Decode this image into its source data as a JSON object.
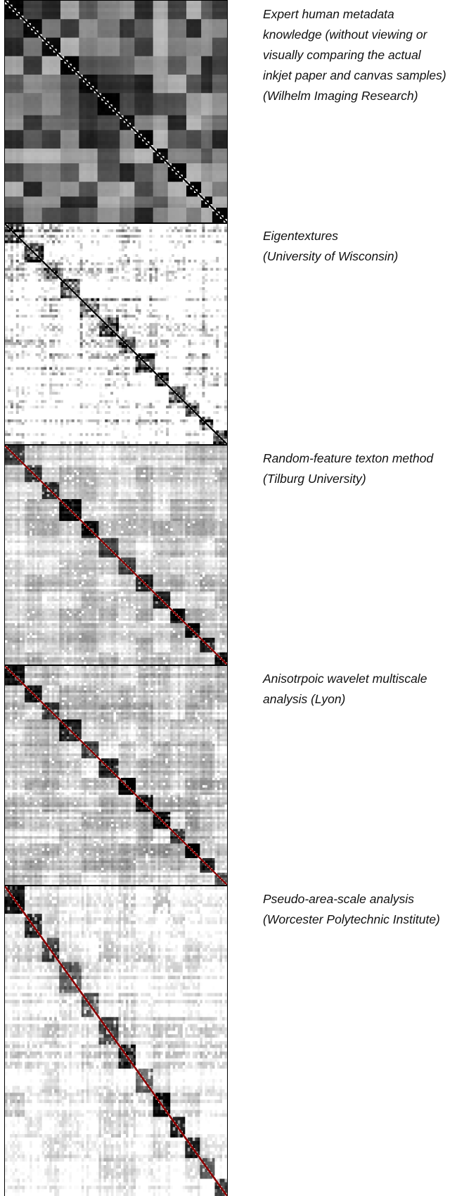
{
  "panels": [
    {
      "style": "human",
      "diagonal_color": "#000000",
      "caption_lines": [
        "Expert human metadata",
        "knowledge (without viewing or",
        "visually comparing the actual",
        "inkjet paper and canvas samples)",
        "(Wilhelm Imaging Research)"
      ]
    },
    {
      "style": "eigen",
      "diagonal_color": "#000000",
      "caption_lines": [
        "Eigentextures",
        "(University of Wisconsin)"
      ]
    },
    {
      "style": "texton",
      "diagonal_color": "#8b0000",
      "caption_lines": [
        "Random-feature texton method",
        "(Tilburg University)"
      ]
    },
    {
      "style": "wavelet",
      "diagonal_color": "#8b0000",
      "caption_lines": [
        "Anisotrpoic wavelet multiscale",
        "analysis (Lyon)"
      ]
    },
    {
      "style": "area",
      "diagonal_color": "#8b0000",
      "caption_lines": [
        "Pseudo-area-scale analysis",
        "(Worcester Polytechnic Institute)"
      ]
    }
  ]
}
